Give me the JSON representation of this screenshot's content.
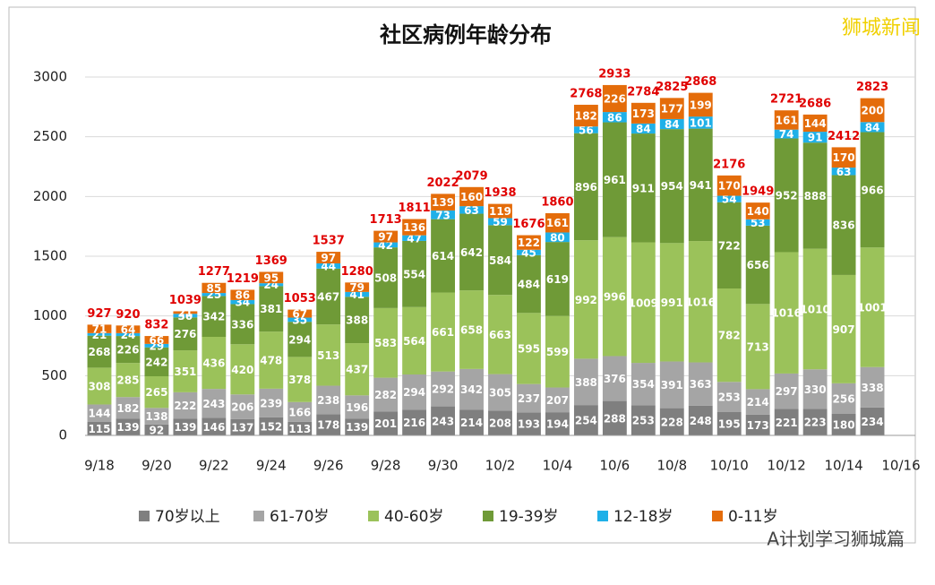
{
  "chart_data": {
    "type": "stacked_bar",
    "title": "社区病例年龄分布",
    "categories": [
      "9/18",
      null,
      "9/20",
      null,
      "9/22",
      null,
      "9/24",
      null,
      "9/26",
      null,
      "9/28",
      null,
      "9/30",
      null,
      "10/2",
      null,
      "10/4",
      null,
      "10/6",
      null,
      "10/8",
      null,
      "10/10",
      null,
      "10/12",
      null,
      "10/14",
      null,
      "10/16"
    ],
    "series": [
      {
        "name": "70岁以上",
        "color": "#7f7f7f",
        "values": [
          115,
          139,
          92,
          139,
          146,
          137,
          152,
          113,
          178,
          139,
          201,
          216,
          243,
          214,
          208,
          193,
          194,
          254,
          288,
          253,
          228,
          248,
          195,
          173,
          221,
          223,
          180,
          234,
          null
        ]
      },
      {
        "name": "61-70岁",
        "color": "#a5a5a5",
        "values": [
          144,
          182,
          138,
          222,
          243,
          206,
          239,
          166,
          238,
          196,
          282,
          294,
          292,
          342,
          305,
          237,
          207,
          388,
          376,
          354,
          391,
          363,
          253,
          214,
          297,
          330,
          256,
          338,
          null
        ]
      },
      {
        "name": "40-60岁",
        "color": "#9bc25a",
        "values": [
          308,
          285,
          265,
          351,
          436,
          420,
          478,
          378,
          513,
          437,
          583,
          564,
          661,
          658,
          663,
          595,
          599,
          992,
          996,
          1009,
          991,
          1016,
          782,
          713,
          1016,
          1010,
          907,
          1001,
          null
        ]
      },
      {
        "name": "19-39岁",
        "color": "#6f9a37",
        "values": [
          268,
          226,
          242,
          276,
          342,
          336,
          381,
          294,
          467,
          388,
          508,
          554,
          614,
          642,
          584,
          484,
          619,
          896,
          961,
          911,
          954,
          941,
          722,
          656,
          952,
          888,
          836,
          966,
          null
        ]
      },
      {
        "name": "12-18岁",
        "color": "#1fb0e8",
        "values": [
          21,
          24,
          29,
          30,
          25,
          34,
          24,
          35,
          44,
          41,
          42,
          47,
          73,
          63,
          59,
          45,
          80,
          56,
          86,
          84,
          84,
          101,
          54,
          53,
          74,
          91,
          63,
          84,
          null
        ]
      },
      {
        "name": "0-11岁",
        "color": "#e46c0a",
        "values": [
          71,
          64,
          66,
          21,
          85,
          86,
          95,
          67,
          97,
          79,
          97,
          136,
          139,
          160,
          119,
          122,
          161,
          182,
          226,
          173,
          177,
          199,
          170,
          140,
          161,
          144,
          170,
          200,
          null
        ]
      }
    ],
    "totals": [
      927,
      920,
      832,
      1039,
      1277,
      1219,
      1369,
      1053,
      1537,
      1280,
      1713,
      1811,
      2022,
      2079,
      1938,
      1676,
      1860,
      2768,
      2933,
      2784,
      2825,
      2868,
      2176,
      1949,
      2721,
      2686,
      2412,
      2823,
      null
    ],
    "ylim": [
      0,
      3000
    ],
    "yticks": [
      0,
      500,
      1000,
      1500,
      2000,
      2500,
      3000
    ],
    "grid": true,
    "legend": "bottom",
    "watermark": "狮城新闻",
    "footer": "A计划学习狮城篇"
  }
}
